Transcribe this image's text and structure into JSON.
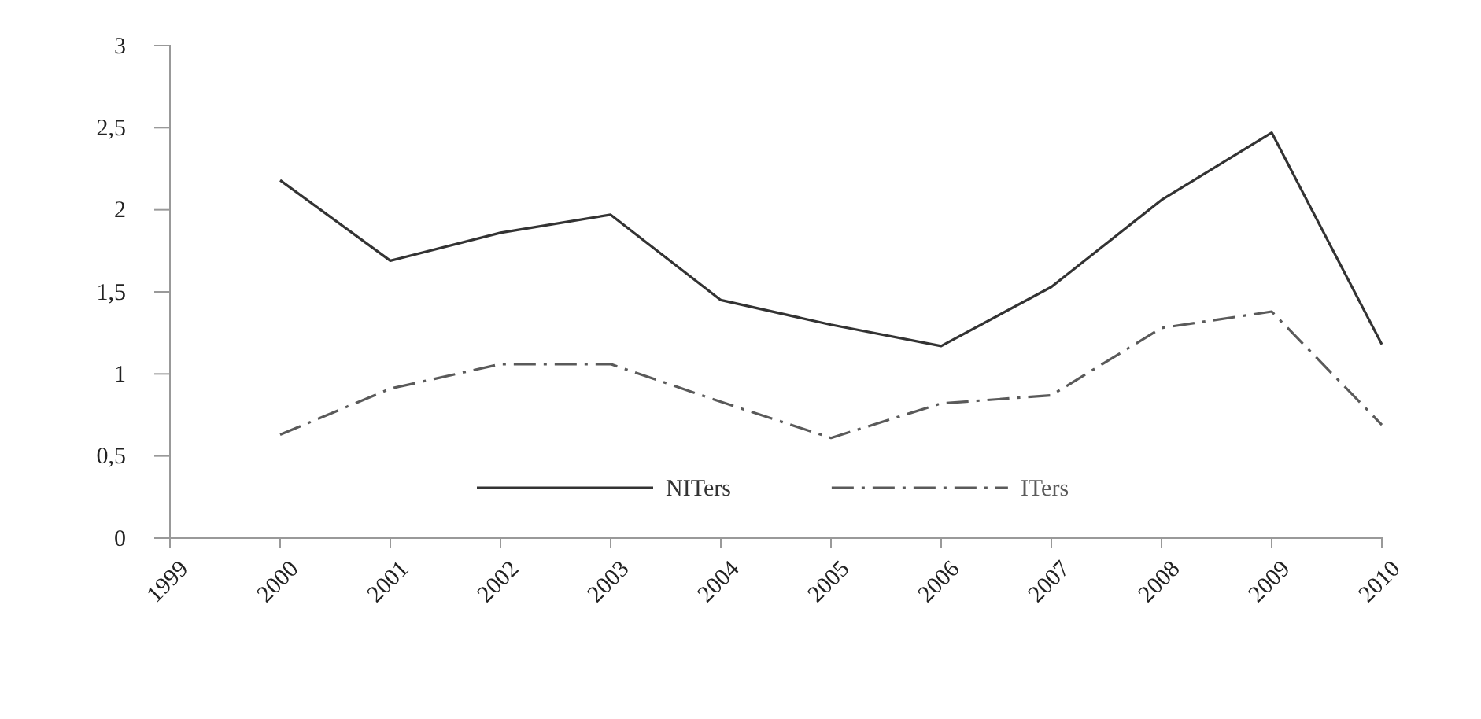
{
  "chart_data": {
    "type": "line",
    "x": [
      2000,
      2001,
      2002,
      2003,
      2004,
      2005,
      2006,
      2007,
      2008,
      2009,
      2010
    ],
    "xlim": [
      1999,
      2010
    ],
    "xticks": [
      1999,
      2000,
      2001,
      2002,
      2003,
      2004,
      2005,
      2006,
      2007,
      2008,
      2009,
      2010
    ],
    "ylim": [
      0,
      3
    ],
    "yticks": [
      0,
      {
        "value": 0.5,
        "label": "0,5"
      },
      1,
      {
        "value": 1.5,
        "label": "1,5"
      },
      2,
      {
        "value": 2.5,
        "label": "2,5"
      },
      3
    ],
    "grid": false,
    "legend": "bottom",
    "marker": "none",
    "series": [
      {
        "name": "NITers",
        "color": "#333333",
        "line_style": "solid",
        "values": [
          2.18,
          1.69,
          1.86,
          1.97,
          1.45,
          1.3,
          1.17,
          1.53,
          2.06,
          2.47,
          1.18
        ]
      },
      {
        "name": "ITers",
        "color": "#5a5a5a",
        "line_style": "dashed",
        "values": [
          0.63,
          0.91,
          1.06,
          1.06,
          0.83,
          0.61,
          0.82,
          0.87,
          1.28,
          1.38,
          0.69
        ]
      }
    ]
  }
}
